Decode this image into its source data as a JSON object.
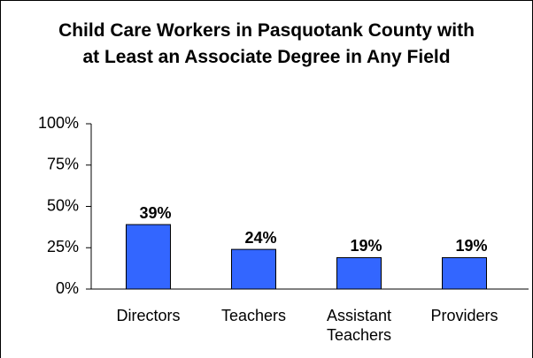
{
  "chart_data": {
    "type": "bar",
    "title": "Child Care Workers in Pasquotank County with at Least an Associate Degree in Any Field",
    "categories": [
      "Directors",
      "Teachers",
      "Assistant Teachers",
      "Providers"
    ],
    "values": [
      39,
      24,
      19,
      19
    ],
    "value_labels": [
      "39%",
      "24%",
      "19%",
      "19%"
    ],
    "color": "#3366ff",
    "ylim": [
      0,
      100
    ],
    "yticks": [
      {
        "value": 0,
        "label": "0%"
      },
      {
        "value": 25,
        "label": "25%"
      },
      {
        "value": 50,
        "label": "50%"
      },
      {
        "value": 75,
        "label": "75%"
      },
      {
        "value": 100,
        "label": "100%"
      }
    ],
    "grid": false
  }
}
